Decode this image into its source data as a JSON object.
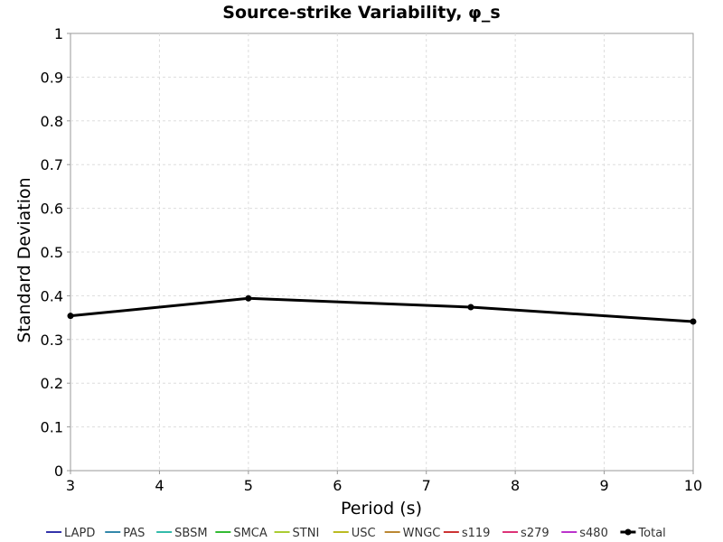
{
  "chart_data": {
    "type": "line",
    "title": "Source-strike Variability, φ_s",
    "xlabel": "Period (s)",
    "ylabel": "Standard Deviation",
    "xlim": [
      3,
      10
    ],
    "ylim": [
      0,
      1
    ],
    "xticks": [
      "3",
      "4",
      "5",
      "6",
      "7",
      "8",
      "9",
      "10"
    ],
    "yticks": [
      "0",
      "0.1",
      "0.2",
      "0.3",
      "0.4",
      "0.5",
      "0.6",
      "0.7",
      "0.8",
      "0.9",
      "1"
    ],
    "grid": true,
    "legend_position": "bottom",
    "series": [
      {
        "name": "LAPD",
        "color": "#3333aa",
        "x": [],
        "y": []
      },
      {
        "name": "PAS",
        "color": "#3388aa",
        "x": [],
        "y": []
      },
      {
        "name": "SBSM",
        "color": "#33bbaa",
        "x": [],
        "y": []
      },
      {
        "name": "SMCA",
        "color": "#33bb33",
        "x": [],
        "y": []
      },
      {
        "name": "STNI",
        "color": "#aacc33",
        "x": [],
        "y": []
      },
      {
        "name": "USC",
        "color": "#bbbb22",
        "x": [],
        "y": []
      },
      {
        "name": "WNGC",
        "color": "#bb8833",
        "x": [],
        "y": []
      },
      {
        "name": "s119",
        "color": "#cc3333",
        "x": [],
        "y": []
      },
      {
        "name": "s279",
        "color": "#dd3377",
        "x": [],
        "y": []
      },
      {
        "name": "s480",
        "color": "#bb33cc",
        "x": [],
        "y": []
      },
      {
        "name": "Total",
        "color": "#000000",
        "x": [
          3,
          5,
          7.5,
          10
        ],
        "y": [
          0.354,
          0.394,
          0.374,
          0.341
        ],
        "markers": true
      }
    ]
  }
}
